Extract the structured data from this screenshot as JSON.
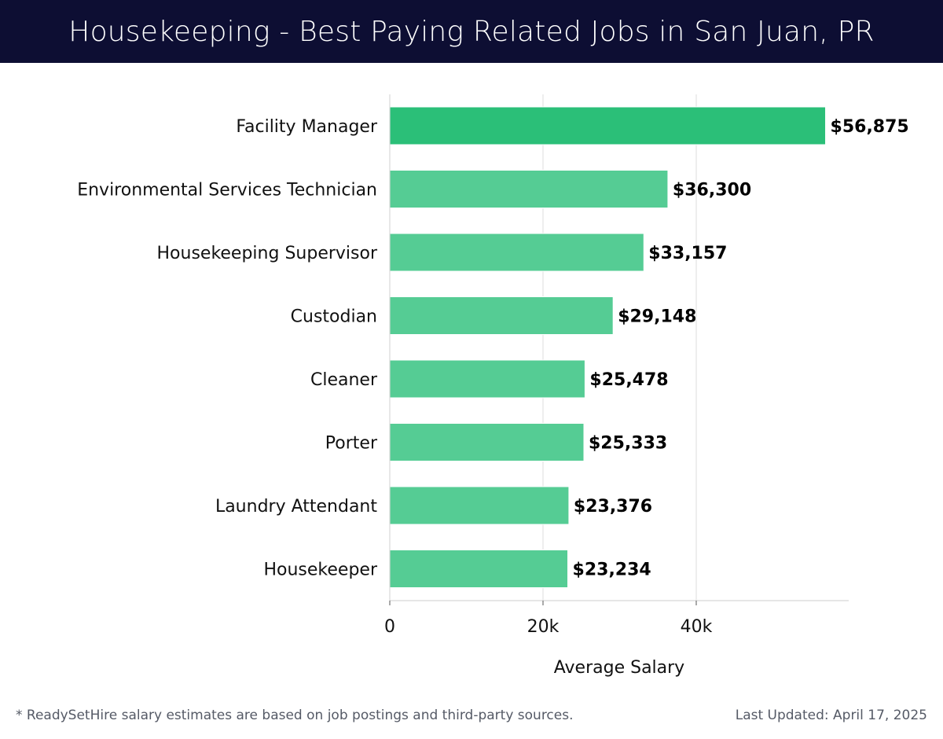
{
  "header": {
    "title": "Housekeeping - Best Paying Related Jobs in San Juan, PR",
    "background_color": "#0d0e33"
  },
  "chart_data": {
    "type": "bar",
    "orientation": "horizontal",
    "title": "Housekeeping - Best Paying Related Jobs in San Juan, PR",
    "xlabel": "Average Salary",
    "ylabel": "",
    "xlim": [
      0,
      59000
    ],
    "x_ticks": [
      0,
      20000,
      40000
    ],
    "x_tick_labels": [
      "0",
      "20k",
      "40k"
    ],
    "grid": "vertical",
    "categories": [
      "Facility Manager",
      "Environmental Services Technician",
      "Housekeeping Supervisor",
      "Custodian",
      "Cleaner",
      "Porter",
      "Laundry Attendant",
      "Housekeeper"
    ],
    "values": [
      56875,
      36300,
      33157,
      29148,
      25478,
      25333,
      23376,
      23234
    ],
    "value_labels": [
      "$56,875",
      "$36,300",
      "$33,157",
      "$29,148",
      "$25,478",
      "$25,333",
      "$23,376",
      "$23,234"
    ],
    "highlight_color": "#2bbf78",
    "bar_color": "#55cc94"
  },
  "footer": {
    "note": "* ReadySetHire salary estimates are based on job postings and third-party sources.",
    "updated": "Last Updated: April 17, 2025"
  }
}
